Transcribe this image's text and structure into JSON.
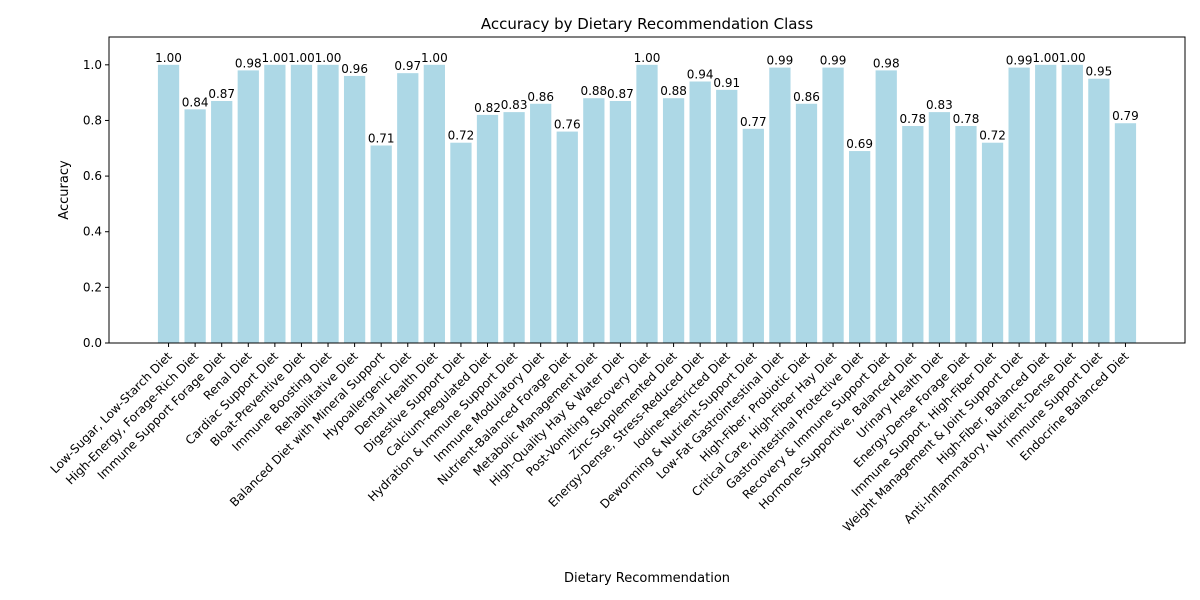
{
  "chart_data": {
    "type": "bar",
    "title": "Accuracy by Dietary Recommendation Class",
    "xlabel": "Dietary Recommendation",
    "ylabel": "Accuracy",
    "ylim": [
      0,
      1.1
    ],
    "yticks": [
      "0.0",
      "0.2",
      "0.4",
      "0.6",
      "0.8",
      "1.0"
    ],
    "bar_color": "#add8e6",
    "grid": false,
    "categories": [
      "Low-Sugar, Low-Starch Diet",
      "High-Energy, Forage-Rich Diet",
      "Immune Support Forage Diet",
      "Renal Diet",
      "Cardiac Support Diet",
      "Bloat-Preventive Diet",
      "Immune Boosting Diet",
      "Rehabilitative Diet",
      "Balanced Diet with Mineral Support",
      "Hypoallergenic Diet",
      "Dental Health Diet",
      "Digestive Support Diet",
      "Calcium-Regulated Diet",
      "Hydration & Immune Support Diet",
      "Immune Modulatory Diet",
      "Nutrient-Balanced Forage Diet",
      "Metabolic Management Diet",
      "High-Quality Hay & Water Diet",
      "Post-Vomiting Recovery Diet",
      "Zinc-Supplemented Diet",
      "Energy-Dense, Stress-Reduced Diet",
      "Iodine-Restricted Diet",
      "Deworming & Nutrient-Support Diet",
      "Low-Fat Gastrointestinal Diet",
      "High-Fiber, Probiotic Diet",
      "Critical Care, High-Fiber Hay Diet",
      "Gastrointestinal Protective Diet",
      "Recovery & Immune Support Diet",
      "Hormone-Supportive, Balanced Diet",
      "Urinary Health Diet",
      "Energy-Dense Forage Diet",
      "Immune Support, High-Fiber Diet",
      "Weight Management & Joint Support Diet",
      "High-Fiber, Balanced Diet",
      "Anti-Inflammatory, Nutrient-Dense Diet",
      "Immune Support Diet",
      "Endocrine Balanced Diet"
    ],
    "values": [
      1.0,
      0.84,
      0.87,
      0.98,
      1.0,
      1.0,
      1.0,
      0.96,
      0.71,
      0.97,
      1.0,
      0.72,
      0.82,
      0.83,
      0.86,
      0.76,
      0.88,
      0.87,
      1.0,
      0.88,
      0.94,
      0.91,
      0.77,
      0.99,
      0.86,
      0.99,
      0.69,
      0.98,
      0.78,
      0.83,
      0.78,
      0.72,
      0.99,
      1.0,
      1.0,
      0.95,
      0.79
    ],
    "value_labels": [
      "1.00",
      "0.84",
      "0.87",
      "0.98",
      "1.00",
      "1.00",
      "1.00",
      "0.96",
      "0.71",
      "0.97",
      "1.00",
      "0.72",
      "0.82",
      "0.83",
      "0.86",
      "0.76",
      "0.88",
      "0.87",
      "1.00",
      "0.88",
      "0.94",
      "0.91",
      "0.77",
      "0.99",
      "0.86",
      "0.99",
      "0.69",
      "0.98",
      "0.78",
      "0.83",
      "0.78",
      "0.72",
      "0.99",
      "1.00",
      "1.00",
      "0.95",
      "0.79"
    ]
  }
}
